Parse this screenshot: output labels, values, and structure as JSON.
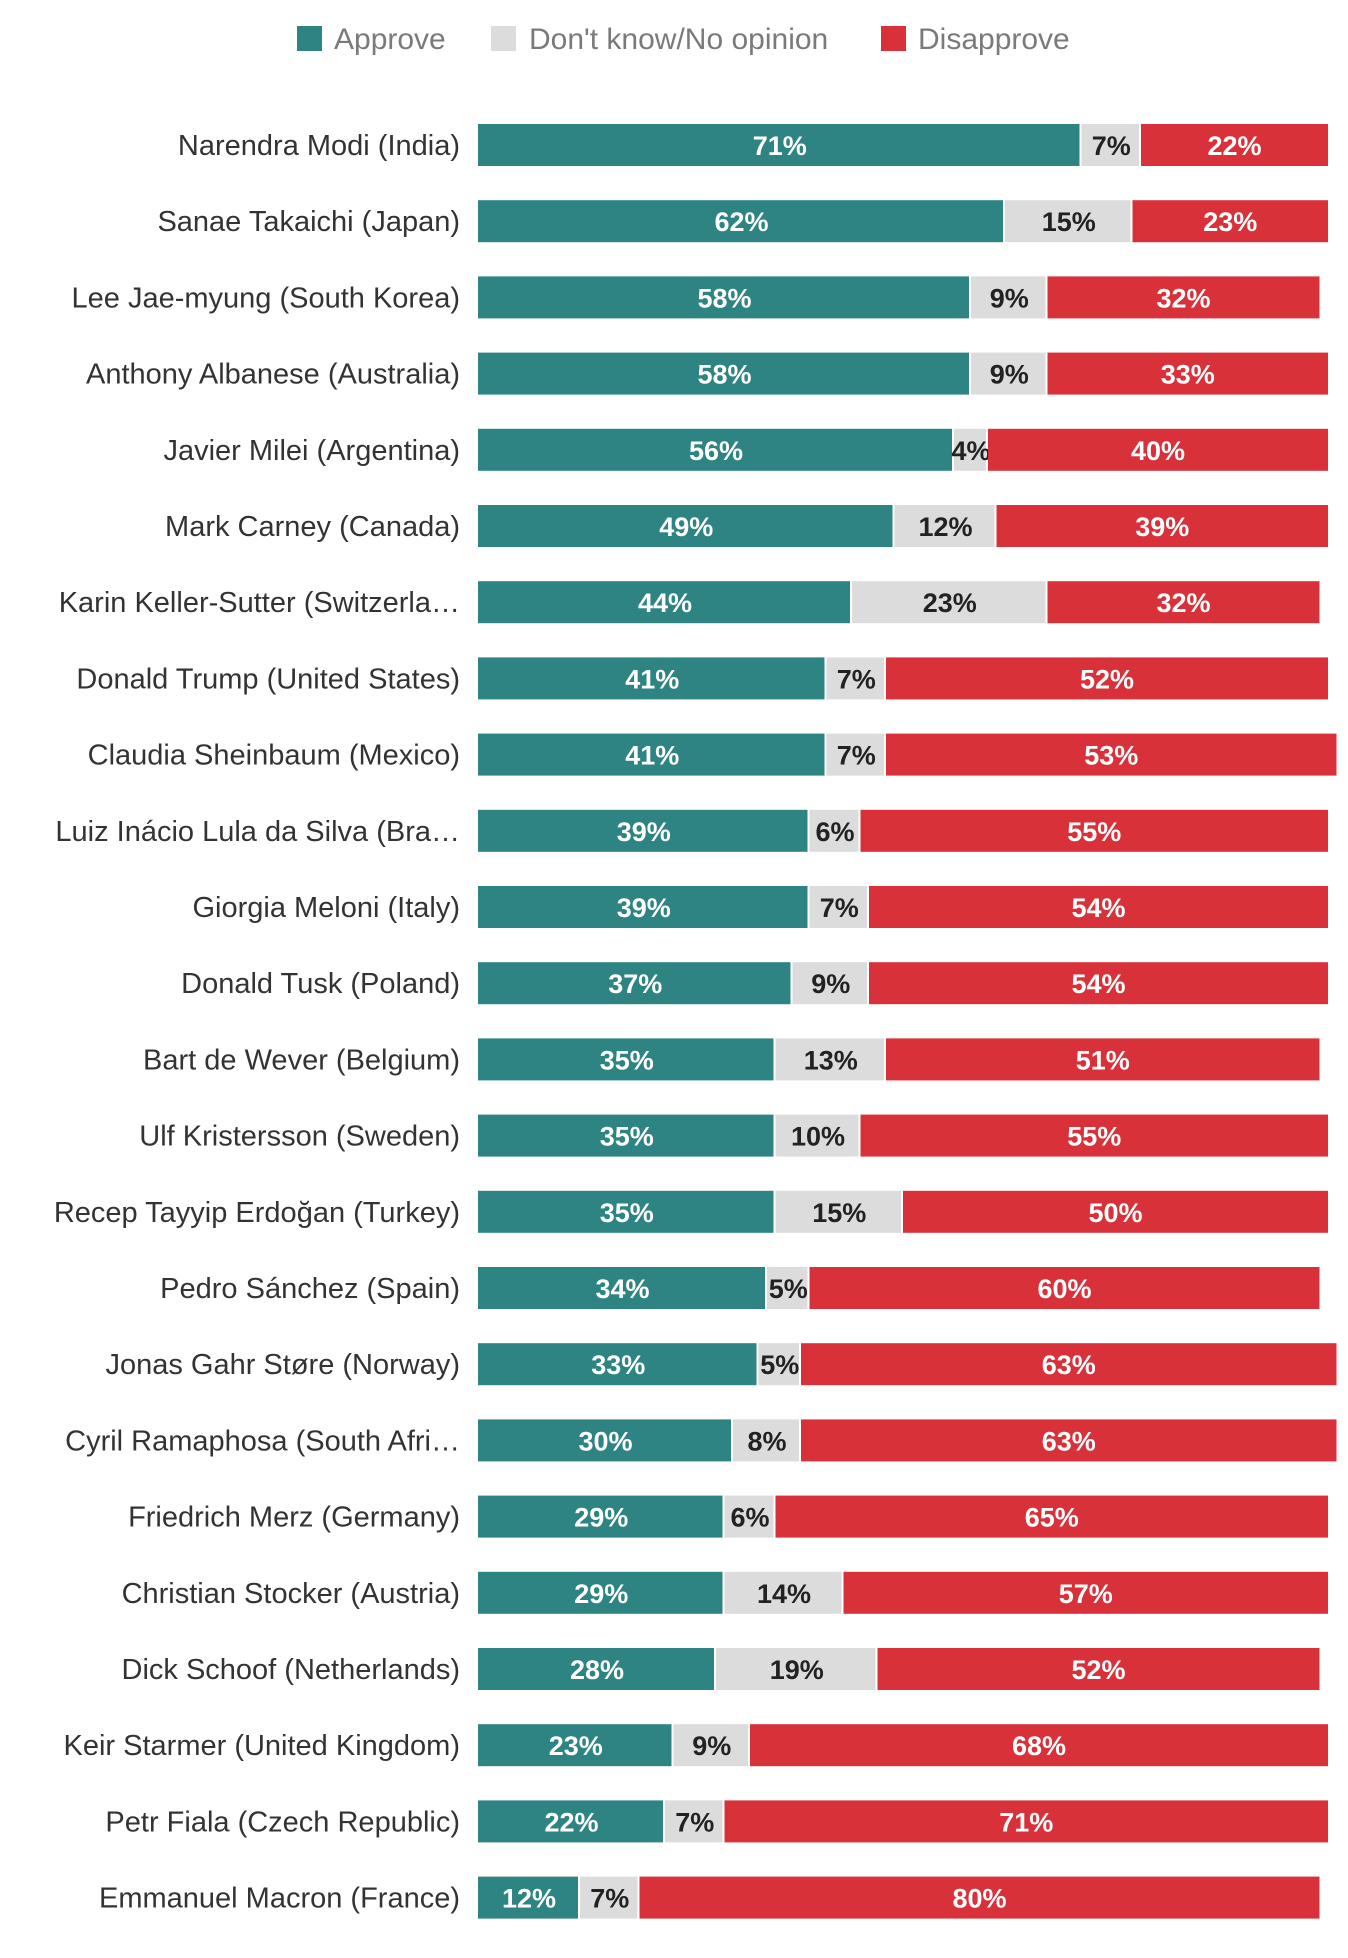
{
  "chart_data": {
    "type": "bar",
    "orientation": "horizontal",
    "stacked": true,
    "legend": {
      "position": "top",
      "entries": [
        {
          "key": "approve",
          "label": "Approve",
          "color": "#2e8482"
        },
        {
          "key": "dk",
          "label": "Don't know/No opinion",
          "color": "#dcdcdc"
        },
        {
          "key": "disapprove",
          "label": "Disapprove",
          "color": "#d8313a"
        }
      ]
    },
    "categories": [
      "Narendra Modi (India)",
      "Sanae Takaichi (Japan)",
      "Lee Jae-myung (South Korea)",
      "Anthony Albanese (Australia)",
      "Javier Milei (Argentina)",
      "Mark Carney (Canada)",
      "Karin Keller-Sutter (Switzerla…",
      "Donald Trump (United States)",
      "Claudia Sheinbaum (Mexico)",
      "Luiz Inácio Lula da Silva (Bra…",
      "Giorgia Meloni (Italy)",
      "Donald Tusk (Poland)",
      "Bart de Wever (Belgium)",
      "Ulf Kristersson (Sweden)",
      "Recep Tayyip Erdoğan (Turkey)",
      "Pedro Sánchez (Spain)",
      "Jonas Gahr Støre (Norway)",
      "Cyril Ramaphosa (South Afri…",
      "Friedrich Merz (Germany)",
      "Christian Stocker (Austria)",
      "Dick Schoof (Netherlands)",
      "Keir Starmer (United Kingdom)",
      "Petr Fiala (Czech Republic)",
      "Emmanuel Macron (France)"
    ],
    "series": [
      {
        "name": "Approve",
        "key": "approve",
        "values": [
          71,
          62,
          58,
          58,
          56,
          49,
          44,
          41,
          41,
          39,
          39,
          37,
          35,
          35,
          35,
          34,
          33,
          30,
          29,
          29,
          28,
          23,
          22,
          12
        ]
      },
      {
        "name": "Don't know/No opinion",
        "key": "dk",
        "values": [
          7,
          15,
          9,
          9,
          4,
          12,
          23,
          7,
          7,
          6,
          7,
          9,
          13,
          10,
          15,
          5,
          5,
          8,
          6,
          14,
          19,
          9,
          7,
          7
        ]
      },
      {
        "name": "Disapprove",
        "key": "disapprove",
        "values": [
          22,
          23,
          32,
          33,
          40,
          39,
          32,
          52,
          53,
          55,
          54,
          54,
          51,
          55,
          50,
          60,
          63,
          63,
          65,
          57,
          52,
          68,
          71,
          80
        ]
      }
    ],
    "value_suffix": "%",
    "xlim": [
      0,
      100
    ],
    "grid": false
  }
}
